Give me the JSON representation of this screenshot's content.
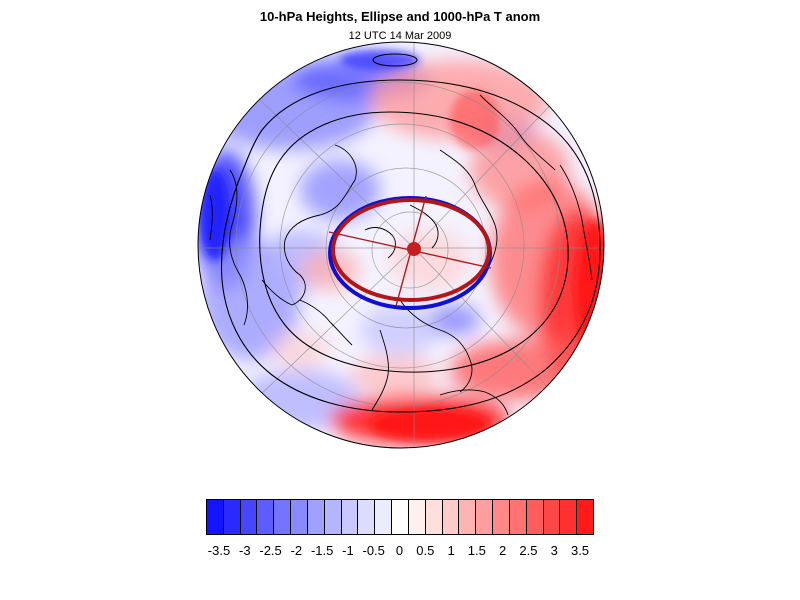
{
  "header": {
    "title": "10-hPa Heights, Ellipse and 1000-hPa T anom",
    "subtitle": "12 UTC 14 Mar 2009"
  },
  "map": {
    "projection": "orthographic-polar",
    "colors": {
      "cold": "#0000ff",
      "warm": "#ff0000",
      "ellipse_blue": "#1010d0",
      "ellipse_red": "#b01818",
      "contour": "#000000",
      "coast": "#000000"
    }
  },
  "legend": {
    "colors": [
      "#1414ff",
      "#2a2aff",
      "#4646ff",
      "#5c5cff",
      "#7474ff",
      "#8a8aff",
      "#a0a0ff",
      "#b4b4ff",
      "#c8c8ff",
      "#dcdcff",
      "#ececff",
      "#ffffff",
      "#fff0f0",
      "#ffdede",
      "#ffcaca",
      "#ffb4b4",
      "#ff9e9e",
      "#ff8888",
      "#ff7272",
      "#ff5c5c",
      "#ff4646",
      "#ff3030",
      "#ff1a1a"
    ],
    "ticks": [
      "-3.5",
      "-3",
      "-2.5",
      "-2",
      "-1.5",
      "-1",
      "-0.5",
      "0",
      "0.5",
      "1",
      "1.5",
      "2",
      "2.5",
      "3",
      "3.5"
    ]
  }
}
